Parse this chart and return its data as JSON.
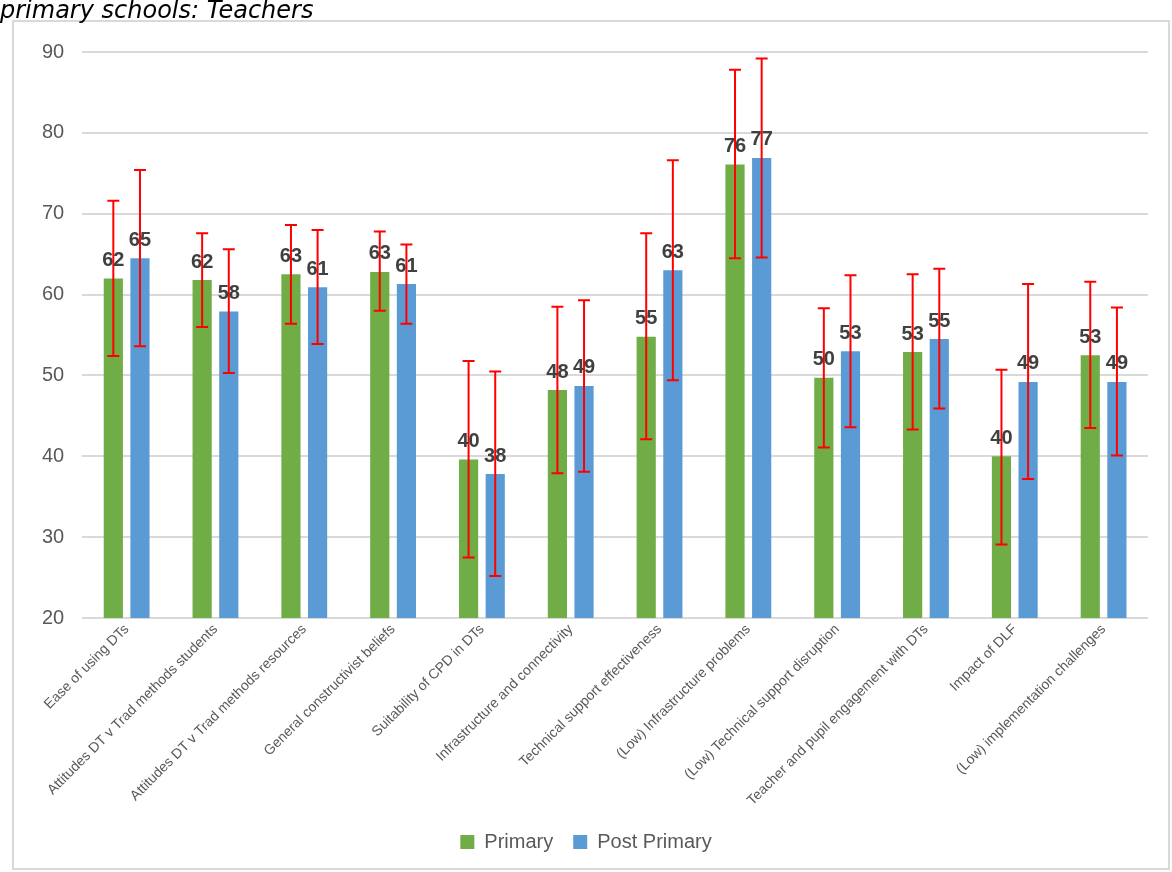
{
  "chart_data": {
    "type": "bar",
    "title": "primary schools: Teachers",
    "categories": [
      "Ease of using DTs",
      "Attitudes DT v Trad methods students",
      "Attitudes DT v Trad methods resources",
      "General constructivist beliefs",
      "Suitability of CPD in DTs",
      "Infrastructure and connectivity",
      "Technical support effectiveness",
      "(Low) Infrastructure problems",
      "(Low) Technical support disruption",
      "Teacher and pupil engagement with DTs",
      "Impact of DLF",
      "(Low) implementation challenges"
    ],
    "series": [
      {
        "name": "Primary",
        "color": "#70ad47",
        "values": [
          62.0,
          61.8,
          62.5,
          62.8,
          39.6,
          48.2,
          54.8,
          76.1,
          49.7,
          52.9,
          40.0,
          52.5
        ],
        "value_labels": [
          "62",
          "62",
          "63",
          "63",
          "40",
          "48",
          "55",
          "76",
          "50",
          "53",
          "40",
          "53"
        ],
        "errors": [
          [
            52.4,
            71.6
          ],
          [
            56.0,
            67.6
          ],
          [
            56.4,
            68.6
          ],
          [
            58.0,
            67.8
          ],
          [
            27.5,
            51.8
          ],
          [
            37.9,
            58.5
          ],
          [
            42.1,
            67.6
          ],
          [
            64.5,
            87.8
          ],
          [
            41.1,
            58.3
          ],
          [
            43.3,
            62.5
          ],
          [
            29.1,
            50.7
          ],
          [
            43.5,
            61.6
          ]
        ]
      },
      {
        "name": "Post Primary",
        "color": "#5b9bd5",
        "values": [
          64.5,
          57.9,
          60.9,
          61.3,
          37.8,
          48.7,
          63.0,
          76.9,
          53.0,
          54.5,
          49.2,
          49.2
        ],
        "value_labels": [
          "65",
          "58",
          "61",
          "61",
          "38",
          "49",
          "63",
          "77",
          "53",
          "55",
          "49",
          "49"
        ],
        "errors": [
          [
            53.6,
            75.4
          ],
          [
            50.3,
            65.6
          ],
          [
            53.9,
            68.0
          ],
          [
            56.4,
            66.2
          ],
          [
            25.2,
            50.5
          ],
          [
            38.1,
            59.3
          ],
          [
            49.4,
            76.6
          ],
          [
            64.6,
            89.2
          ],
          [
            43.6,
            62.4
          ],
          [
            45.9,
            63.2
          ],
          [
            37.2,
            61.3
          ],
          [
            40.1,
            58.4
          ]
        ]
      }
    ],
    "ylim": [
      20,
      90
    ],
    "yticks": [
      20,
      30,
      40,
      50,
      60,
      70,
      80,
      90
    ],
    "grid": "y",
    "legend": "bottom"
  }
}
